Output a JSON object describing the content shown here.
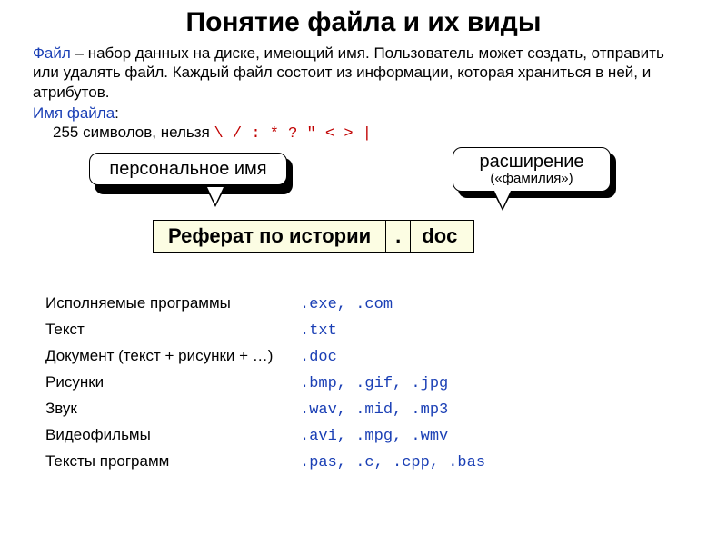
{
  "title": "Понятие файла и их виды",
  "definition": {
    "term": "Файл",
    "rest": " – набор данных на диске, имеющий имя. Пользователь может создать, отправить или удалять файл. Каждый файл состоит из информации, которая храниться в ней, и атрибутов."
  },
  "filename_rule": {
    "label": "Имя файла",
    "text": "255 символов, нельзя ",
    "forbidden": "\\ / : * ? \" < > |"
  },
  "callouts": {
    "personal": {
      "text": "персональное имя"
    },
    "extension": {
      "main": "расширение",
      "sub": "(«фамилия»)"
    }
  },
  "filename_example": {
    "name": "Реферат по истории",
    "dot": ".",
    "ext": "doc"
  },
  "ext_rows": [
    {
      "label": "Исполняемые программы",
      "ext": ".exe, .com"
    },
    {
      "label": "Текст",
      "ext": ".txt"
    },
    {
      "label": "Документ (текст + рисунки + …)",
      "ext": ".doc"
    },
    {
      "label": "Рисунки",
      "ext": ".bmp, .gif, .jpg"
    },
    {
      "label": "Звук",
      "ext": ".wav, .mid, .mp3"
    },
    {
      "label": "Видеофильмы",
      "ext": ".avi, .mpg, .wmv"
    },
    {
      "label": "Тексты программ",
      "ext": ".pas, .c, .cpp, .bas"
    }
  ],
  "colors": {
    "term": "#1a3fb5",
    "forbidden": "#c00000",
    "mono": "#1a3fb5",
    "table_bg": "#fcfde3"
  }
}
